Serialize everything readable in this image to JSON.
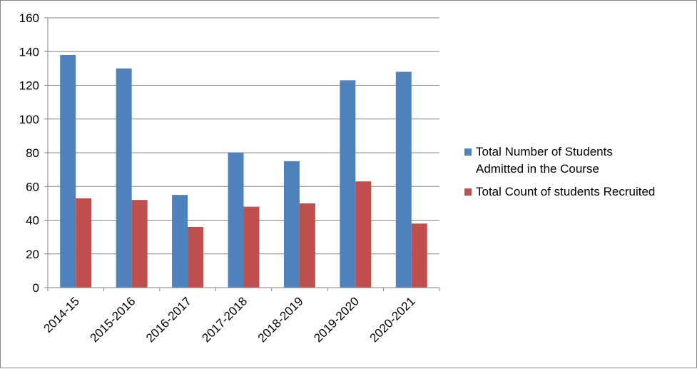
{
  "chart_data": {
    "type": "bar",
    "categories": [
      "2014-15",
      "2015-2016",
      "2016-2017",
      "2017-2018",
      "2018-2019",
      "2019-2020",
      "2020-2021"
    ],
    "series": [
      {
        "name": "Total Number of Students Admitted in  the Course",
        "values": [
          138,
          130,
          55,
          80,
          75,
          123,
          128
        ],
        "color": "#4F81BD"
      },
      {
        "name": "Total Count of students Recruited",
        "values": [
          53,
          52,
          36,
          48,
          50,
          63,
          38
        ],
        "color": "#C0504D"
      }
    ],
    "yticks": [
      0,
      20,
      40,
      60,
      80,
      100,
      120,
      140,
      160
    ],
    "ylim": [
      0,
      160
    ],
    "title": "",
    "xlabel": "",
    "ylabel": "",
    "grid": true,
    "legend_position": "right"
  },
  "legend": {
    "items": [
      {
        "line1": "Total Number of Students",
        "line2": "Admitted in  the Course"
      },
      {
        "line1": "Total Count of students Recruited",
        "line2": ""
      }
    ]
  }
}
